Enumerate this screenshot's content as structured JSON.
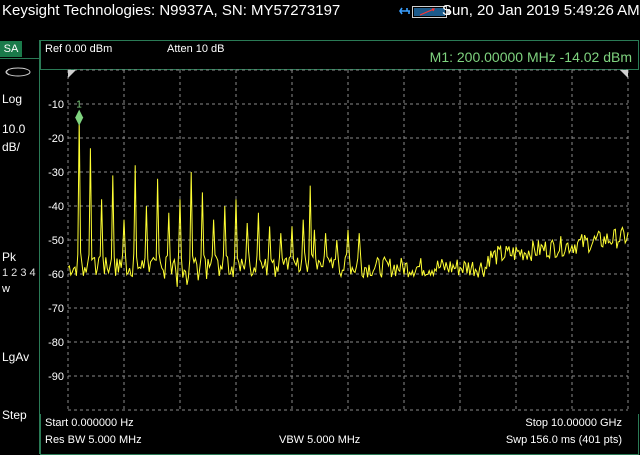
{
  "titlebar": {
    "title": "Keysight Technologies: N9937A, SN: MY57273197",
    "clock": "Sun, 20 Jan 2019 5:49:26 AM",
    "usb_icon": "usb-icon",
    "battery_icon": "battery-icon"
  },
  "sidebar": {
    "mode": "SA",
    "scale_type": "Log",
    "scale_value": "10.0",
    "scale_unit": "dB/",
    "detector": "Pk",
    "traces": "1 2 3 4",
    "trace_state": "w",
    "average": "LgAv",
    "step": "Step"
  },
  "header": {
    "ref_level": "Ref 0.00 dBm",
    "attenuation": "Atten 10 dB",
    "marker_readout": "M1:  200.00000 MHz -14.02 dBm"
  },
  "plot": {
    "y_tick_labels": [
      "-10",
      "-20",
      "-30",
      "-40",
      "-50",
      "-60",
      "-70",
      "-80",
      "-90"
    ],
    "marker_label": "1",
    "trace_color": "#ffff33",
    "grid_color": "#8a8a8a",
    "marker_color": "#7fd37f"
  },
  "footer": {
    "start": "Start 0.000000  Hz",
    "stop": "Stop 10.00000 GHz",
    "rbw": "Res BW 5.000 MHz",
    "vbw": "VBW 5.000 MHz",
    "sweep": "Swp 156.0 ms (401 pts)"
  },
  "colors": {
    "accent": "#1a7a4a",
    "border": "#2a7a55",
    "background": "#000000"
  }
}
